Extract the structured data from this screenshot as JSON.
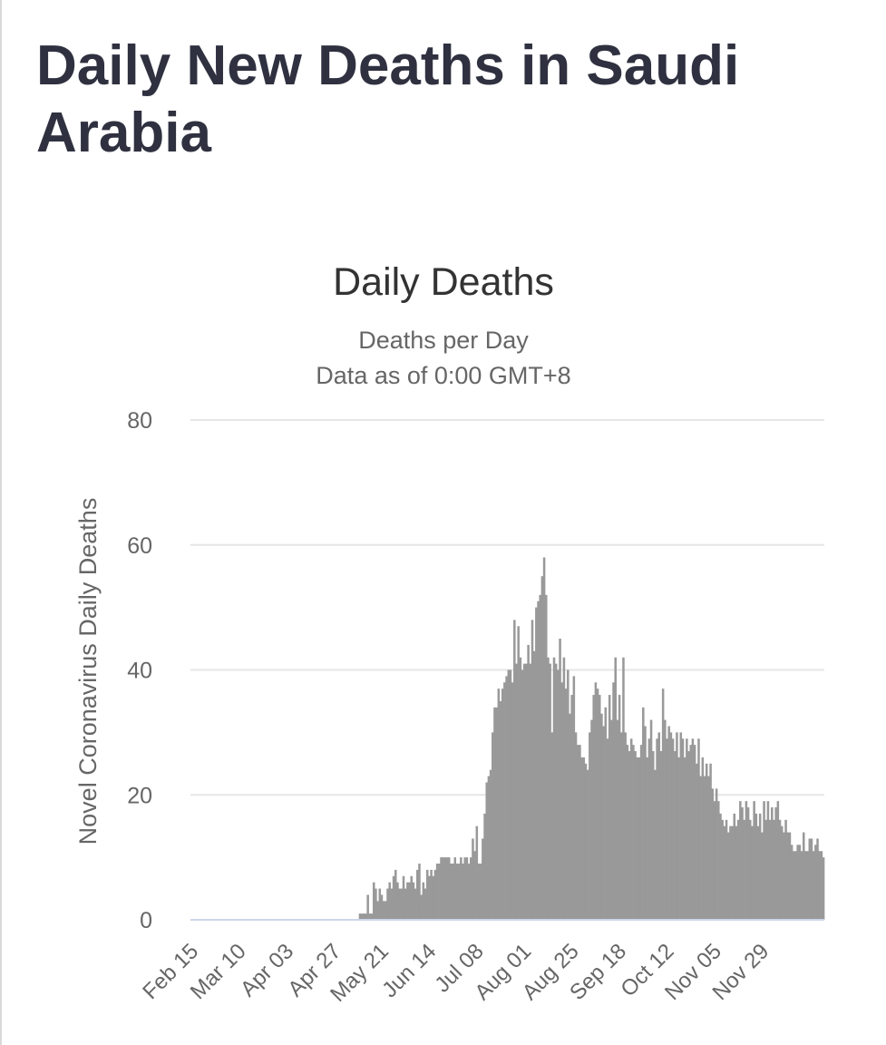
{
  "page": {
    "title": "Daily New Deaths in Saudi Arabia"
  },
  "chart_data": {
    "type": "bar",
    "title": "Daily Deaths",
    "subtitle": [
      "Deaths per Day",
      "Data as of 0:00 GMT+8"
    ],
    "ylabel": "Novel Coronavirus Daily Deaths",
    "xlabel": "",
    "ylim": [
      0,
      80
    ],
    "yticks": [
      0,
      20,
      40,
      60,
      80
    ],
    "grid": true,
    "bar_color": "#999999",
    "grid_color": "#e6e6e6",
    "baseline_color": "#ccd6eb",
    "start_date": "2020-02-15",
    "xtick_labels": [
      "Feb 15",
      "Mar 10",
      "Apr 03",
      "Apr 27",
      "May 21",
      "Jun 14",
      "Jul 08",
      "Aug 01",
      "Aug 25",
      "Sep 18",
      "Oct 12",
      "Nov 05",
      "Nov 29"
    ],
    "values": [
      0,
      0,
      0,
      0,
      0,
      0,
      0,
      0,
      0,
      0,
      0,
      0,
      0,
      0,
      0,
      0,
      0,
      0,
      0,
      0,
      0,
      0,
      0,
      0,
      0,
      0,
      0,
      0,
      0,
      0,
      0,
      0,
      0,
      0,
      0,
      0,
      0,
      0,
      0,
      0,
      0,
      0,
      0,
      0,
      0,
      0,
      0,
      0,
      0,
      0,
      0,
      0,
      0,
      0,
      0,
      0,
      0,
      0,
      0,
      0,
      0,
      0,
      0,
      0,
      0,
      0,
      0,
      0,
      0,
      0,
      0,
      0,
      0,
      0,
      0,
      0,
      0,
      0,
      0,
      0,
      0,
      0,
      0,
      0,
      0,
      1,
      1,
      1,
      1,
      4,
      1,
      1,
      6,
      5,
      3,
      5,
      4,
      3,
      3,
      5,
      6,
      5,
      7,
      8,
      6,
      5,
      5,
      7,
      5,
      6,
      6,
      7,
      6,
      5,
      8,
      9,
      4,
      6,
      5,
      8,
      7,
      8,
      7,
      8,
      9,
      9,
      10,
      10,
      10,
      10,
      10,
      9,
      9,
      10,
      9,
      9,
      10,
      9,
      10,
      10,
      9,
      10,
      13,
      11,
      15,
      9,
      9,
      13,
      17,
      22,
      23,
      24,
      30,
      34,
      34,
      37,
      35,
      37,
      38,
      39,
      40,
      40,
      38,
      48,
      41,
      47,
      42,
      40,
      41,
      41,
      44,
      41,
      48,
      43,
      50,
      51,
      52,
      55,
      58,
      52,
      42,
      41,
      30,
      42,
      41,
      40,
      45,
      38,
      42,
      37,
      40,
      33,
      36,
      39,
      30,
      28,
      28,
      26,
      26,
      25,
      24,
      30,
      32,
      36,
      38,
      37,
      36,
      33,
      31,
      34,
      29,
      36,
      32,
      38,
      42,
      32,
      36,
      30,
      42,
      30,
      28,
      27,
      29,
      28,
      27,
      26,
      26,
      28,
      34,
      31,
      26,
      29,
      32,
      27,
      24,
      29,
      30,
      27,
      37,
      32,
      29,
      31,
      30,
      29,
      27,
      30,
      26,
      30,
      29,
      26,
      29,
      27,
      28,
      29,
      28,
      25,
      29,
      23,
      26,
      23,
      25,
      23,
      25,
      21,
      19,
      21,
      19,
      17,
      16,
      15,
      16,
      14,
      15,
      15,
      17,
      15,
      16,
      19,
      18,
      16,
      19,
      18,
      16,
      15,
      19,
      17,
      15,
      17,
      14,
      19,
      16,
      19,
      16,
      18,
      16,
      18,
      19,
      16,
      15,
      14,
      16,
      14,
      14,
      12,
      11,
      11,
      12,
      12,
      11,
      14,
      11,
      11,
      13,
      13,
      11,
      12,
      13,
      11,
      11,
      10
    ]
  }
}
